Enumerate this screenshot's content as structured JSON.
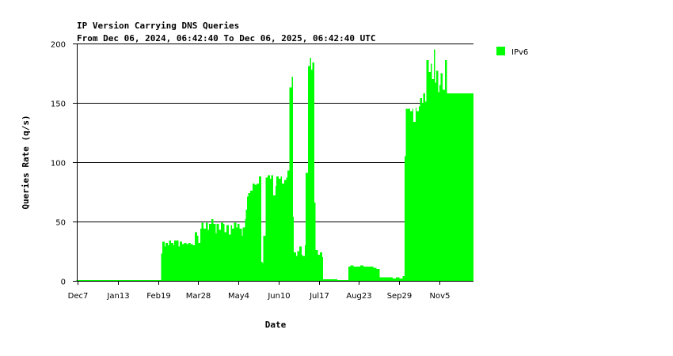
{
  "chart_data": {
    "type": "bar",
    "title": "IP Version Carrying DNS Queries",
    "subtitle": "From Dec 06, 2024, 06:42:40 To Dec 06, 2025, 06:42:40 UTC",
    "xlabel": "Date",
    "ylabel": "Queries Rate (q/s)",
    "x_range": [
      "2024-12-06",
      "2025-12-06"
    ],
    "ylim": [
      0,
      200
    ],
    "yticks": [
      0,
      50,
      100,
      150,
      200
    ],
    "xticks": [
      {
        "date": "2024-12-07",
        "label": "Dec7"
      },
      {
        "date": "2025-01-13",
        "label": "Jan13"
      },
      {
        "date": "2025-02-19",
        "label": "Feb19"
      },
      {
        "date": "2025-03-28",
        "label": "Mar28"
      },
      {
        "date": "2025-05-04",
        "label": "May4"
      },
      {
        "date": "2025-06-10",
        "label": "Jun10"
      },
      {
        "date": "2025-07-17",
        "label": "Jul17"
      },
      {
        "date": "2025-08-23",
        "label": "Aug23"
      },
      {
        "date": "2025-09-29",
        "label": "Sep29"
      },
      {
        "date": "2025-11-05",
        "label": "Nov5"
      }
    ],
    "grid": true,
    "legend_position": "top-right",
    "series": [
      {
        "name": "IPv6",
        "color": "#00ff00",
        "points": [
          [
            "2024-12-06",
            0.3
          ],
          [
            "2025-02-21",
            0.3
          ],
          [
            "2025-02-22",
            23
          ],
          [
            "2025-02-23",
            33
          ],
          [
            "2025-02-25",
            29
          ],
          [
            "2025-02-26",
            32
          ],
          [
            "2025-02-28",
            30
          ],
          [
            "2025-03-01",
            34
          ],
          [
            "2025-03-03",
            32
          ],
          [
            "2025-03-05",
            30
          ],
          [
            "2025-03-06",
            34
          ],
          [
            "2025-03-08",
            34
          ],
          [
            "2025-03-10",
            29
          ],
          [
            "2025-03-11",
            33
          ],
          [
            "2025-03-13",
            31
          ],
          [
            "2025-03-15",
            32
          ],
          [
            "2025-03-17",
            31
          ],
          [
            "2025-03-19",
            32
          ],
          [
            "2025-03-21",
            31
          ],
          [
            "2025-03-23",
            30
          ],
          [
            "2025-03-25",
            41
          ],
          [
            "2025-03-27",
            38
          ],
          [
            "2025-03-28",
            32
          ],
          [
            "2025-03-30",
            44
          ],
          [
            "2025-03-31",
            49
          ],
          [
            "2025-04-02",
            44
          ],
          [
            "2025-04-04",
            49
          ],
          [
            "2025-04-06",
            43
          ],
          [
            "2025-04-07",
            48
          ],
          [
            "2025-04-09",
            52
          ],
          [
            "2025-04-11",
            48
          ],
          [
            "2025-04-13",
            40
          ],
          [
            "2025-04-14",
            48
          ],
          [
            "2025-04-16",
            43
          ],
          [
            "2025-04-18",
            49
          ],
          [
            "2025-04-20",
            48
          ],
          [
            "2025-04-21",
            41
          ],
          [
            "2025-04-23",
            47
          ],
          [
            "2025-04-25",
            39
          ],
          [
            "2025-04-27",
            47
          ],
          [
            "2025-04-28",
            44
          ],
          [
            "2025-04-30",
            49
          ],
          [
            "2025-05-02",
            45
          ],
          [
            "2025-05-03",
            48
          ],
          [
            "2025-05-05",
            44
          ],
          [
            "2025-05-07",
            38
          ],
          [
            "2025-05-08",
            45
          ],
          [
            "2025-05-10",
            52
          ],
          [
            "2025-05-11",
            60
          ],
          [
            "2025-05-12",
            71
          ],
          [
            "2025-05-13",
            74
          ],
          [
            "2025-05-15",
            76
          ],
          [
            "2025-05-17",
            82
          ],
          [
            "2025-05-19",
            81
          ],
          [
            "2025-05-21",
            82
          ],
          [
            "2025-05-23",
            88
          ],
          [
            "2025-05-25",
            16
          ],
          [
            "2025-05-26",
            15
          ],
          [
            "2025-05-27",
            38
          ],
          [
            "2025-05-29",
            87
          ],
          [
            "2025-05-31",
            89
          ],
          [
            "2025-06-02",
            86
          ],
          [
            "2025-06-03",
            89
          ],
          [
            "2025-06-05",
            72
          ],
          [
            "2025-06-07",
            80
          ],
          [
            "2025-06-08",
            88
          ],
          [
            "2025-06-10",
            86
          ],
          [
            "2025-06-12",
            88
          ],
          [
            "2025-06-13",
            82
          ],
          [
            "2025-06-15",
            85
          ],
          [
            "2025-06-17",
            87
          ],
          [
            "2025-06-18",
            93
          ],
          [
            "2025-06-20",
            163
          ],
          [
            "2025-06-22",
            172
          ],
          [
            "2025-06-23",
            54
          ],
          [
            "2025-06-24",
            24
          ],
          [
            "2025-06-26",
            21
          ],
          [
            "2025-06-27",
            25
          ],
          [
            "2025-06-29",
            29
          ],
          [
            "2025-07-01",
            22
          ],
          [
            "2025-07-02",
            21
          ],
          [
            "2025-07-04",
            30
          ],
          [
            "2025-07-05",
            91
          ],
          [
            "2025-07-07",
            181
          ],
          [
            "2025-07-09",
            188
          ],
          [
            "2025-07-10",
            178
          ],
          [
            "2025-07-11",
            184
          ],
          [
            "2025-07-13",
            66
          ],
          [
            "2025-07-14",
            26
          ],
          [
            "2025-07-16",
            22
          ],
          [
            "2025-07-18",
            24
          ],
          [
            "2025-07-20",
            20
          ],
          [
            "2025-07-21",
            1.5
          ],
          [
            "2025-08-02",
            1.3
          ],
          [
            "2025-08-03",
            0.7
          ],
          [
            "2025-08-10",
            0.8
          ],
          [
            "2025-08-13",
            12
          ],
          [
            "2025-08-15",
            13
          ],
          [
            "2025-08-18",
            12
          ],
          [
            "2025-08-21",
            12
          ],
          [
            "2025-08-24",
            13
          ],
          [
            "2025-08-27",
            12
          ],
          [
            "2025-08-30",
            12
          ],
          [
            "2025-09-02",
            12
          ],
          [
            "2025-09-05",
            11
          ],
          [
            "2025-09-08",
            10
          ],
          [
            "2025-09-11",
            3
          ],
          [
            "2025-09-14",
            3
          ],
          [
            "2025-09-17",
            3
          ],
          [
            "2025-09-20",
            3
          ],
          [
            "2025-09-23",
            2
          ],
          [
            "2025-09-26",
            3
          ],
          [
            "2025-09-29",
            2
          ],
          [
            "2025-10-02",
            4
          ],
          [
            "2025-10-04",
            105
          ],
          [
            "2025-10-05",
            145
          ],
          [
            "2025-10-07",
            145
          ],
          [
            "2025-10-09",
            143
          ],
          [
            "2025-10-11",
            145
          ],
          [
            "2025-10-12",
            134
          ],
          [
            "2025-10-14",
            146
          ],
          [
            "2025-10-15",
            143
          ],
          [
            "2025-10-17",
            147
          ],
          [
            "2025-10-18",
            154
          ],
          [
            "2025-10-20",
            150
          ],
          [
            "2025-10-21",
            158
          ],
          [
            "2025-10-23",
            151
          ],
          [
            "2025-10-24",
            186
          ],
          [
            "2025-10-26",
            176
          ],
          [
            "2025-10-28",
            183
          ],
          [
            "2025-10-29",
            170
          ],
          [
            "2025-10-31",
            195
          ],
          [
            "2025-11-01",
            167
          ],
          [
            "2025-11-02",
            177
          ],
          [
            "2025-11-04",
            159
          ],
          [
            "2025-11-05",
            165
          ],
          [
            "2025-11-06",
            175
          ],
          [
            "2025-11-08",
            161
          ],
          [
            "2025-11-10",
            186
          ],
          [
            "2025-11-12",
            158
          ]
        ]
      }
    ]
  }
}
